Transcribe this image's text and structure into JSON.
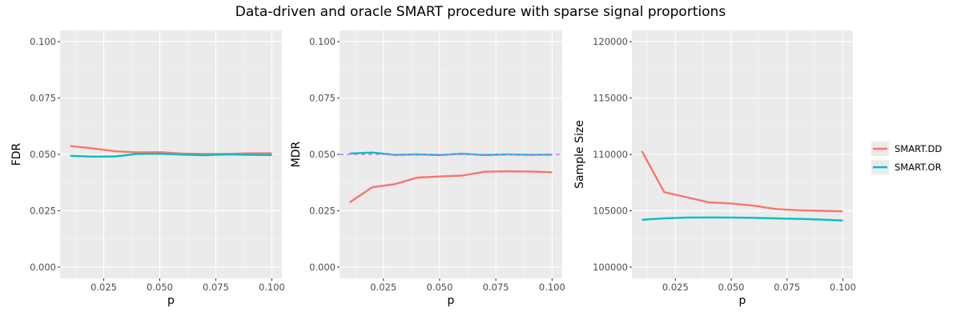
{
  "title": "Data-driven and oracle SMART procedure with sparse signal proportions",
  "colors": {
    "panel_bg": "#EBEBEB",
    "grid_major": "#FFFFFF",
    "SMART.DD": "#F8766D",
    "SMART.OR": "#00BFC4",
    "reference_line": "#C77CFF"
  },
  "legend": {
    "placement": "right",
    "items": [
      {
        "name": "SMART.DD",
        "color": "#F8766D"
      },
      {
        "name": "SMART.OR",
        "color": "#00BFC4"
      }
    ]
  },
  "chart_data": [
    {
      "type": "line",
      "xlabel": "p",
      "ylabel": "FDR",
      "xlim": [
        0.0055,
        0.1045
      ],
      "ylim": [
        -0.005,
        0.105
      ],
      "x_ticks": [
        "0.025",
        "0.050",
        "0.075",
        "0.100"
      ],
      "x_tick_values": [
        0.025,
        0.05,
        0.075,
        0.1
      ],
      "y_ticks": [
        "0.000",
        "0.025",
        "0.050",
        "0.075",
        "0.100"
      ],
      "y_tick_values": [
        0,
        0.025,
        0.05,
        0.075,
        0.1
      ],
      "x": [
        0.01,
        0.02,
        0.03,
        0.04,
        0.05,
        0.06,
        0.07,
        0.08,
        0.09,
        0.1
      ],
      "series": [
        {
          "name": "SMART.DD",
          "values": [
            0.0537,
            0.0527,
            0.0514,
            0.0509,
            0.051,
            0.0504,
            0.0502,
            0.0502,
            0.0505,
            0.0505
          ]
        },
        {
          "name": "SMART.OR",
          "values": [
            0.0494,
            0.049,
            0.0491,
            0.0502,
            0.0503,
            0.0499,
            0.0496,
            0.05,
            0.0498,
            0.0497
          ]
        }
      ]
    },
    {
      "type": "line",
      "xlabel": "p",
      "ylabel": "MDR",
      "xlim": [
        0.0055,
        0.1045
      ],
      "ylim": [
        -0.005,
        0.105
      ],
      "x_ticks": [
        "0.025",
        "0.050",
        "0.075",
        "0.100"
      ],
      "x_tick_values": [
        0.025,
        0.05,
        0.075,
        0.1
      ],
      "y_ticks": [
        "0.000",
        "0.025",
        "0.050",
        "0.075",
        "0.100"
      ],
      "y_tick_values": [
        0,
        0.025,
        0.05,
        0.075,
        0.1
      ],
      "hline": 0.05,
      "x": [
        0.01,
        0.02,
        0.03,
        0.04,
        0.05,
        0.06,
        0.07,
        0.08,
        0.09,
        0.1
      ],
      "series": [
        {
          "name": "SMART.DD",
          "values": [
            0.0287,
            0.0354,
            0.0368,
            0.0397,
            0.0402,
            0.0406,
            0.0423,
            0.0425,
            0.0424,
            0.0421
          ]
        },
        {
          "name": "SMART.OR",
          "values": [
            0.0504,
            0.0508,
            0.0498,
            0.05,
            0.0497,
            0.0503,
            0.0497,
            0.05,
            0.0498,
            0.0499
          ]
        }
      ]
    },
    {
      "type": "line",
      "xlabel": "p",
      "ylabel": "Sample Size",
      "xlim": [
        0.0055,
        0.1045
      ],
      "ylim": [
        99000,
        121000
      ],
      "x_ticks": [
        "0.025",
        "0.050",
        "0.075",
        "0.100"
      ],
      "x_tick_values": [
        0.025,
        0.05,
        0.075,
        0.1
      ],
      "y_ticks": [
        "100000",
        "105000",
        "110000",
        "115000",
        "120000"
      ],
      "y_tick_values": [
        100000,
        105000,
        110000,
        115000,
        120000
      ],
      "x": [
        0.01,
        0.02,
        0.03,
        0.04,
        0.05,
        0.06,
        0.07,
        0.08,
        0.09,
        0.1
      ],
      "series": [
        {
          "name": "SMART.DD",
          "values": [
            110300,
            106650,
            106200,
            105750,
            105650,
            105450,
            105150,
            105050,
            105000,
            104950
          ]
        },
        {
          "name": "SMART.OR",
          "values": [
            104200,
            104330,
            104400,
            104410,
            104400,
            104370,
            104320,
            104280,
            104220,
            104130
          ]
        }
      ]
    }
  ]
}
